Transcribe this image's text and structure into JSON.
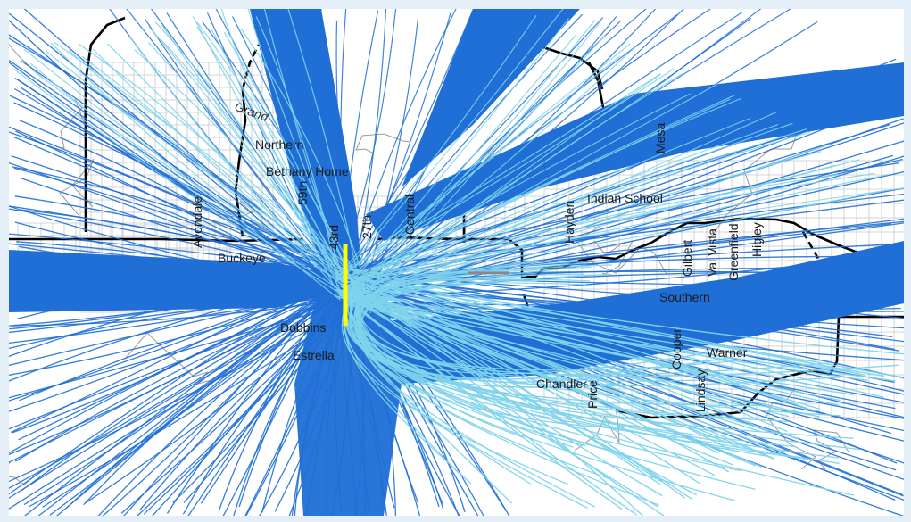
{
  "map": {
    "colors": {
      "background": "#ffffff",
      "frame": "#e4eef6",
      "street_grid": "#c8c8c8",
      "boundary": "#000000",
      "tracks_dark": "#1f6fd6",
      "tracks_light": "#7fd3ec",
      "runway": "#ffff00"
    },
    "labels": {
      "grand": "Grand",
      "northern": "Northern",
      "bethany_home": "Bethany Home",
      "fifty_ninth": "59th",
      "avondale": "Avondale",
      "buckeye": "Buckeye",
      "forty_third": "43rd",
      "twenty_seventh": "27th",
      "central": "Central",
      "hayden": "Hayden",
      "indian_school": "Indian School",
      "mesa": "Mesa",
      "gilbert": "Gilbert",
      "val_vista": "Val Vista",
      "greenfield": "Greenfield",
      "higley": "Higley",
      "southern": "Southern",
      "dobbins": "Dobbins",
      "estrella": "Estrella",
      "cooper": "Cooper",
      "warner": "Warner",
      "lindsay": "Lindsay",
      "chandler": "Chandler",
      "price": "Price"
    }
  }
}
